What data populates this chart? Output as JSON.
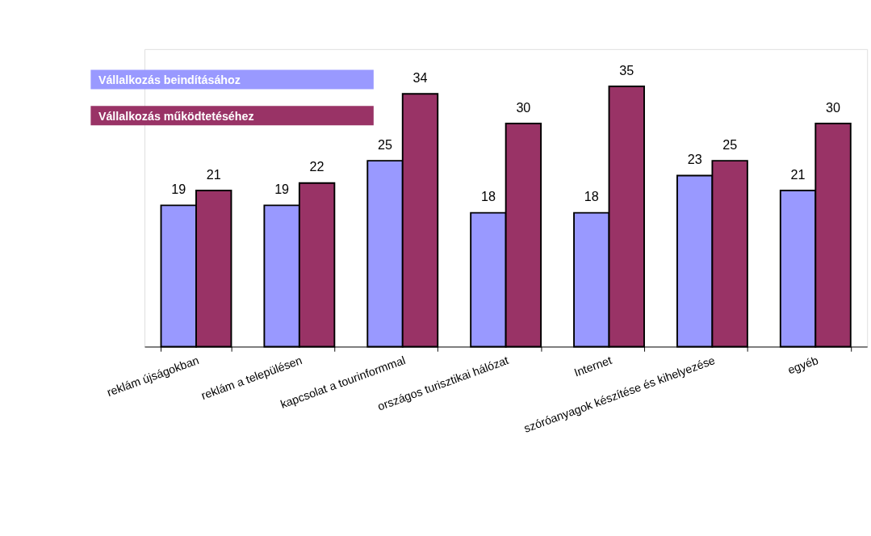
{
  "chart_data": {
    "type": "bar",
    "categories": [
      "reklám újságokban",
      "reklám a településen",
      "kapcsolat a tourinformmal",
      "országos turisztikai hálózat",
      "Internet",
      "szóróanyagok készítése és kihelyezése",
      "egyéb"
    ],
    "series": [
      {
        "name": "Vállalkozás beindításához",
        "color": "#9999ff",
        "values": [
          19,
          19,
          25,
          18,
          18,
          23,
          21
        ]
      },
      {
        "name": "Vállalkozás működtetéséhez",
        "color": "#993366",
        "values": [
          21,
          22,
          34,
          30,
          35,
          25,
          30
        ]
      }
    ],
    "ylim": [
      0,
      40
    ],
    "data_labels": true,
    "legend": "top left",
    "grid": false,
    "tick_labels": "x"
  }
}
